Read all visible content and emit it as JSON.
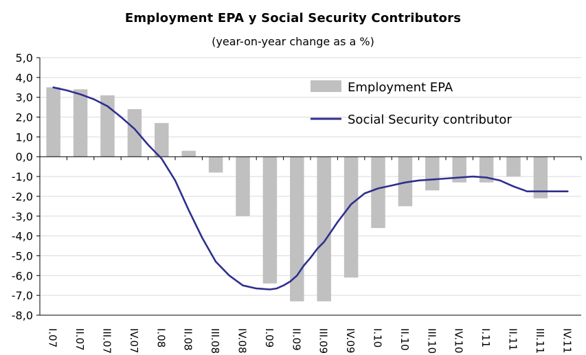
{
  "chart_data": {
    "type": "bar",
    "title": "Employment EPA y Social Security Contributors",
    "subtitle": "(year-on-year change as a %)",
    "xlabel": "",
    "ylabel": "",
    "ylim": [
      -8,
      5
    ],
    "y_ticks": [
      "5,0",
      "4,0",
      "3,0",
      "2,0",
      "1,0",
      "0,0",
      "-1,0",
      "-2,0",
      "-3,0",
      "-4,0",
      "-5,0",
      "-6,0",
      "-7,0",
      "-8,0"
    ],
    "y_tick_values": [
      5,
      4,
      3,
      2,
      1,
      0,
      -1,
      -2,
      -3,
      -4,
      -5,
      -6,
      -7,
      -8
    ],
    "grid": true,
    "legend_position": "top-right",
    "categories": [
      "I.07",
      "II.07",
      "III.07",
      "IV.07",
      "I.08",
      "II.08",
      "III.08",
      "IV.08",
      "I.09",
      "II.09",
      "III.09",
      "IV.09",
      "I.10",
      "II.10",
      "III.10",
      "IV.10",
      "I.11",
      "II.11",
      "III.11",
      "IV.11"
    ],
    "series": [
      {
        "name": "Employment EPA",
        "kind": "bar",
        "color": "#c0c0c0",
        "values": [
          3.5,
          3.4,
          3.1,
          2.4,
          1.7,
          0.3,
          -0.8,
          -3.0,
          -6.4,
          -7.3,
          -7.3,
          -6.1,
          -3.6,
          -2.5,
          -1.7,
          -1.3,
          -1.3,
          -1.0,
          -2.1,
          null
        ]
      },
      {
        "name": "Social Security contributor",
        "kind": "line",
        "color": "#2e2e8f",
        "x": [
          0,
          0.5,
          1,
          1.5,
          2,
          2.5,
          3,
          3.5,
          4,
          4.5,
          5,
          5.5,
          6,
          6.5,
          7,
          7.5,
          8,
          8.25,
          8.5,
          8.75,
          9,
          9.25,
          9.5,
          9.75,
          10,
          10.5,
          11,
          11.5,
          12,
          12.5,
          13,
          13.5,
          14,
          14.5,
          15,
          15.5,
          16,
          16.5,
          17,
          17.5,
          18,
          18.5,
          19
        ],
        "values": [
          3.5,
          3.35,
          3.15,
          2.9,
          2.55,
          2.0,
          1.4,
          0.6,
          -0.1,
          -1.2,
          -2.7,
          -4.1,
          -5.3,
          -6.0,
          -6.5,
          -6.65,
          -6.7,
          -6.65,
          -6.5,
          -6.3,
          -6.0,
          -5.5,
          -5.1,
          -4.65,
          -4.3,
          -3.3,
          -2.4,
          -1.85,
          -1.6,
          -1.45,
          -1.3,
          -1.2,
          -1.15,
          -1.1,
          -1.05,
          -1.0,
          -1.05,
          -1.2,
          -1.5,
          -1.75,
          -1.75,
          -1.75,
          -1.75
        ]
      }
    ]
  }
}
